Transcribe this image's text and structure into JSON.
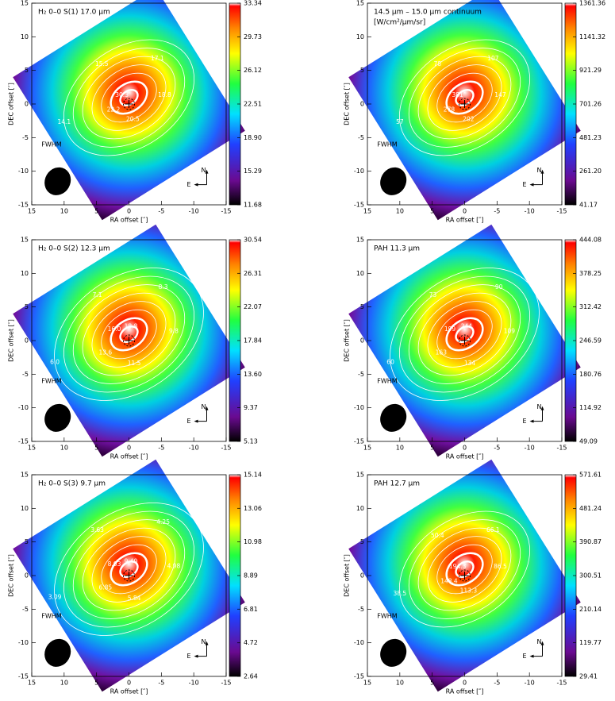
{
  "chart_data": [
    {
      "type": "heatmap",
      "title": "H₂ 0–0 S(1) 17.0 μm",
      "xlabel": "RA offset [″]",
      "ylabel": "DEC offset [″]",
      "xlim": [
        15,
        -15
      ],
      "ylim": [
        -15,
        15
      ],
      "xticks": [
        15,
        10,
        5,
        0,
        -5,
        -10,
        -15
      ],
      "yticks": [
        -15,
        -10,
        -5,
        0,
        5,
        10,
        15
      ],
      "clim": [
        11.68,
        33.34
      ],
      "cticks": [
        11.68,
        15.29,
        {
          "value": 18.9,
          "label": "18.90"
        },
        22.51,
        26.12,
        29.73,
        33.34
      ],
      "contour_labels": [
        "14.1",
        "15.5",
        "17.1",
        "18.8",
        "20.5",
        "22.2",
        "30.3"
      ],
      "beam_label": "FWHM",
      "north": "N",
      "east": "E"
    },
    {
      "type": "heatmap",
      "title": "14.5 μm – 15.0 μm    continuum",
      "subtitle": "[W/cm²/μm/sr]",
      "xlabel": "RA offset [″]",
      "ylabel": "DEC offset [″]",
      "xlim": [
        15,
        -15
      ],
      "ylim": [
        -15,
        15
      ],
      "xticks": [
        15,
        10,
        5,
        0,
        -5,
        -10,
        -15
      ],
      "yticks": [
        -15,
        -10,
        -5,
        0,
        5,
        10,
        15
      ],
      "clim": [
        41.17,
        1361.36
      ],
      "cticks": [
        41.17,
        {
          "value": 261.2,
          "label": "261.20"
        },
        481.23,
        701.26,
        921.29,
        1141.32,
        1361.36
      ],
      "contour_labels": [
        "57",
        "78",
        "107",
        "147",
        "202",
        "278",
        "381"
      ],
      "beam_label": "FWHM",
      "north": "N",
      "east": "E"
    },
    {
      "type": "heatmap",
      "title": "H₂ 0–0 S(2) 12.3 μm",
      "xlabel": "RA offset [″]",
      "ylabel": "DEC offset [″]",
      "xlim": [
        15,
        -15
      ],
      "ylim": [
        -15,
        15
      ],
      "xticks": [
        15,
        10,
        5,
        0,
        -5,
        -10,
        -15
      ],
      "yticks": [
        -15,
        -10,
        -5,
        0,
        5,
        10,
        15
      ],
      "clim": [
        5.13,
        30.54
      ],
      "cticks": [
        5.13,
        9.37,
        {
          "value": 13.6,
          "label": "13.60"
        },
        17.84,
        22.07,
        26.31,
        30.54
      ],
      "contour_labels": [
        "6.0",
        "7.1",
        "8.3",
        "9.8",
        "11.5",
        "13.6",
        "16.0",
        "18.8"
      ],
      "beam_label": "FWHM",
      "north": "N",
      "east": "E"
    },
    {
      "type": "heatmap",
      "title": "PAH 11.3 μm",
      "xlabel": "RA offset [″]",
      "ylabel": "DEC offset [″]",
      "xlim": [
        15,
        -15
      ],
      "ylim": [
        -15,
        15
      ],
      "xticks": [
        15,
        10,
        5,
        0,
        -5,
        -10,
        -15
      ],
      "yticks": [
        -15,
        -10,
        -5,
        0,
        5,
        10,
        15
      ],
      "clim": [
        49.09,
        444.08
      ],
      "cticks": [
        49.09,
        114.92,
        180.76,
        246.59,
        312.42,
        378.25,
        444.08
      ],
      "contour_labels": [
        "60",
        "73",
        "90",
        "109",
        "134",
        "163",
        "199",
        "244"
      ],
      "beam_label": "FWHM",
      "north": "N",
      "east": "E"
    },
    {
      "type": "heatmap",
      "title": "H₂ 0–0 S(3) 9.7 μm",
      "xlabel": "RA offset [″]",
      "ylabel": "DEC offset [″]",
      "xlim": [
        15,
        -15
      ],
      "ylim": [
        -15,
        15
      ],
      "xticks": [
        15,
        10,
        5,
        0,
        -5,
        -10,
        -15
      ],
      "yticks": [
        -15,
        -10,
        -5,
        0,
        5,
        10,
        15
      ],
      "clim": [
        2.64,
        15.14
      ],
      "cticks": [
        2.64,
        4.72,
        6.81,
        8.89,
        10.98,
        13.06,
        15.14
      ],
      "contour_labels": [
        "3.09",
        "3.63",
        "4.25",
        "4.98",
        "5.84",
        "6.85",
        "8.03",
        "9.40"
      ],
      "beam_label": "FWHM",
      "north": "N",
      "east": "E"
    },
    {
      "type": "heatmap",
      "title": "PAH 12.7 μm",
      "xlabel": "RA offset [″]",
      "ylabel": "DEC offset [″]",
      "xlim": [
        15,
        -15
      ],
      "ylim": [
        -15,
        15
      ],
      "xticks": [
        15,
        10,
        5,
        0,
        -5,
        -10,
        -15
      ],
      "yticks": [
        -15,
        -10,
        -5,
        0,
        5,
        10,
        15
      ],
      "clim": [
        29.41,
        571.61
      ],
      "cticks": [
        29.41,
        119.77,
        210.14,
        300.51,
        390.87,
        481.24,
        571.61
      ],
      "contour_labels": [
        "38.5",
        "50.4",
        "66.1",
        "86.5",
        "113.3",
        "148.4",
        "194.3"
      ],
      "beam_label": "FWHM",
      "north": "N",
      "east": "E"
    }
  ]
}
